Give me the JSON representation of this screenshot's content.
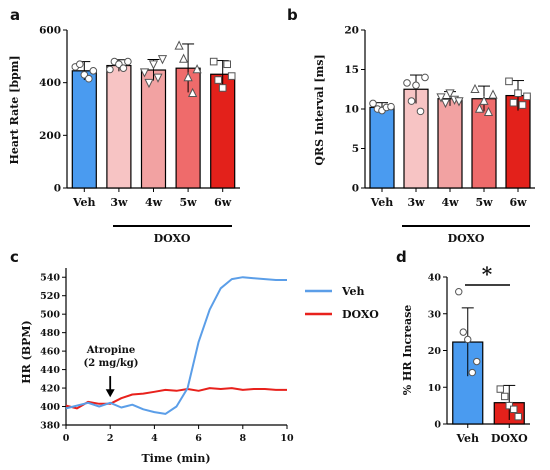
{
  "panels": {
    "a": "a",
    "b": "b",
    "c": "c",
    "d": "d"
  },
  "colors": {
    "veh": "#4a9bf0",
    "w3": "#f7c4c4",
    "w4": "#f2a2a2",
    "w5": "#ef6b6b",
    "w6": "#e3211b",
    "doxo_line": "#e8211c",
    "veh_line": "#5b9ee8"
  },
  "chart_data": [
    {
      "id": "a",
      "type": "bar",
      "categories": [
        "Veh",
        "3w",
        "4w",
        "5w",
        "6w"
      ],
      "values": [
        445,
        465,
        448,
        455,
        432
      ],
      "errors": [
        35,
        22,
        40,
        92,
        52
      ],
      "points": [
        [
          460,
          470,
          430,
          415,
          445
        ],
        [
          450,
          480,
          470,
          455,
          480
        ],
        [
          440,
          400,
          470,
          420,
          490
        ],
        [
          540,
          490,
          420,
          360,
          450
        ],
        [
          480,
          410,
          380,
          470,
          425
        ]
      ],
      "markers": [
        "circle",
        "circle",
        "triangle-down",
        "triangle-up",
        "square"
      ],
      "group_label": "DOXO",
      "ylabel": "Heart Rate [bpm]",
      "ylim": [
        0,
        600
      ],
      "yticks": [
        0,
        200,
        400,
        600
      ]
    },
    {
      "id": "b",
      "type": "bar",
      "categories": [
        "Veh",
        "3w",
        "4w",
        "5w",
        "6w"
      ],
      "values": [
        10.2,
        12.5,
        11.3,
        11.3,
        11.7
      ],
      "errors": [
        0.6,
        1.8,
        0.9,
        1.6,
        1.9
      ],
      "points": [
        [
          10.7,
          10.0,
          9.8,
          10.2,
          10.3
        ],
        [
          13.3,
          11.0,
          13.0,
          9.7,
          14.0
        ],
        [
          11.5,
          10.8,
          12.0,
          11.2,
          11.0
        ],
        [
          12.5,
          10.0,
          11.0,
          9.6,
          11.8
        ],
        [
          13.5,
          10.8,
          12.0,
          10.5,
          11.6
        ]
      ],
      "markers": [
        "circle",
        "circle",
        "triangle-down",
        "triangle-up",
        "square"
      ],
      "group_label": "DOXO",
      "ylabel": "QRS Interval [ms]",
      "ylim": [
        0,
        20
      ],
      "yticks": [
        0,
        5,
        10,
        15,
        20
      ]
    },
    {
      "id": "c",
      "type": "line",
      "xlabel": "Time (min)",
      "ylabel": "HR (BPM)",
      "xlim": [
        0,
        10
      ],
      "ylim": [
        380,
        550
      ],
      "xticks": [
        0,
        2,
        4,
        6,
        8,
        10
      ],
      "yticks": [
        380,
        400,
        420,
        440,
        460,
        480,
        500,
        520,
        540
      ],
      "series": [
        {
          "name": "Veh",
          "x": [
            0,
            0.5,
            1,
            1.5,
            2,
            2.5,
            3,
            3.5,
            4,
            4.5,
            5,
            5.5,
            6,
            6.5,
            7,
            7.5,
            8,
            8.5,
            9,
            9.5,
            10
          ],
          "y": [
            398,
            401,
            404,
            400,
            404,
            399,
            402,
            397,
            394,
            392,
            400,
            420,
            470,
            505,
            528,
            538,
            540,
            539,
            538,
            537,
            537
          ]
        },
        {
          "name": "DOXO",
          "x": [
            0,
            0.5,
            1,
            1.5,
            2,
            2.5,
            3,
            3.5,
            4,
            4.5,
            5,
            5.5,
            6,
            6.5,
            7,
            7.5,
            8,
            8.5,
            9,
            9.5,
            10
          ],
          "y": [
            401,
            398,
            405,
            403,
            403,
            409,
            413,
            414,
            416,
            418,
            417,
            419,
            417,
            420,
            419,
            420,
            418,
            419,
            419,
            418,
            418
          ]
        }
      ],
      "annotation": {
        "line1": "Atropine",
        "line2": "(2 mg/kg)",
        "x": 2,
        "y_from": 433,
        "y_to": 410
      }
    },
    {
      "id": "d",
      "type": "bar",
      "categories": [
        "Veh",
        "DOXO"
      ],
      "values": [
        22.3,
        5.8
      ],
      "errors": [
        9.3,
        4.7
      ],
      "points": [
        [
          36,
          25,
          23,
          14,
          17
        ],
        [
          9.5,
          7.5,
          5,
          4,
          2
        ]
      ],
      "markers": [
        "circle",
        "square"
      ],
      "ylabel": "% HR Increase",
      "ylim": [
        0,
        40
      ],
      "yticks": [
        0,
        10,
        20,
        30,
        40
      ],
      "significance": "*"
    }
  ]
}
